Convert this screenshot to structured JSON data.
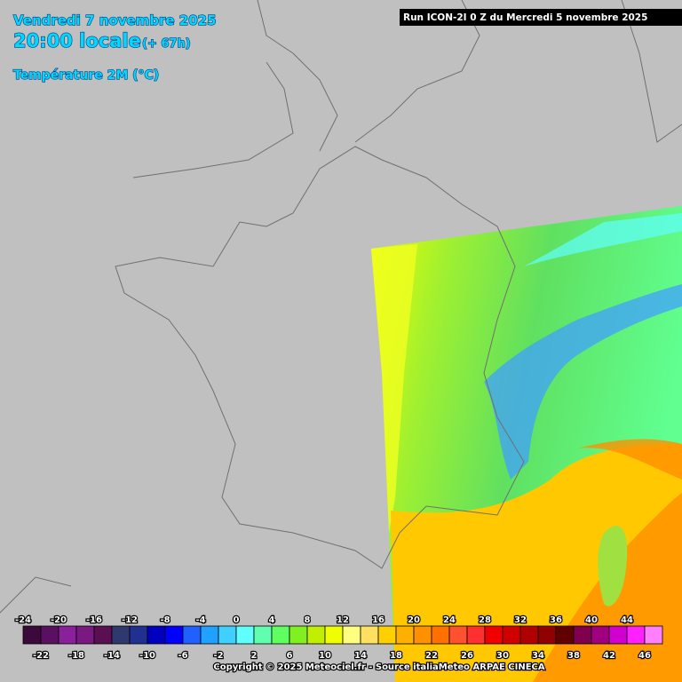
{
  "header": {
    "date": "Vendredi 7 novembre 2025",
    "time": "20:00 locale",
    "offset": "(+ 67h)",
    "variable": "Température 2M (°C)",
    "run": "Run ICON-2I 0 Z du Mercredi 5 novembre 2025"
  },
  "legend": {
    "labels": [
      -24,
      -22,
      -20,
      -18,
      -16,
      -14,
      -12,
      -10,
      -8,
      -6,
      -4,
      -2,
      0,
      2,
      4,
      6,
      8,
      10,
      12,
      14,
      16,
      18,
      20,
      22,
      24,
      26,
      28,
      30,
      32,
      34,
      36,
      38,
      40,
      42,
      44,
      46
    ],
    "colors": [
      "#3b0a3b",
      "#5a1060",
      "#8a209a",
      "#7a1a80",
      "#5a1050",
      "#303870",
      "#203090",
      "#0000c0",
      "#0000ff",
      "#2060ff",
      "#20a0ff",
      "#40d0ff",
      "#60ffff",
      "#60ffb0",
      "#60ff60",
      "#80f020",
      "#c0f000",
      "#f0ff00",
      "#ffff80",
      "#ffe060",
      "#ffd000",
      "#ffb000",
      "#ff9000",
      "#ff7000",
      "#ff5030",
      "#ff3030",
      "#f00000",
      "#d00000",
      "#b00000",
      "#900000",
      "#600000",
      "#800050",
      "#a00080",
      "#d000d0",
      "#ff20ff",
      "#ff80ff"
    ]
  },
  "footer": {
    "copyright": "Copyright © 2025 Meteociel.fr - Source italiaMeteo ARPAE CINECA"
  }
}
